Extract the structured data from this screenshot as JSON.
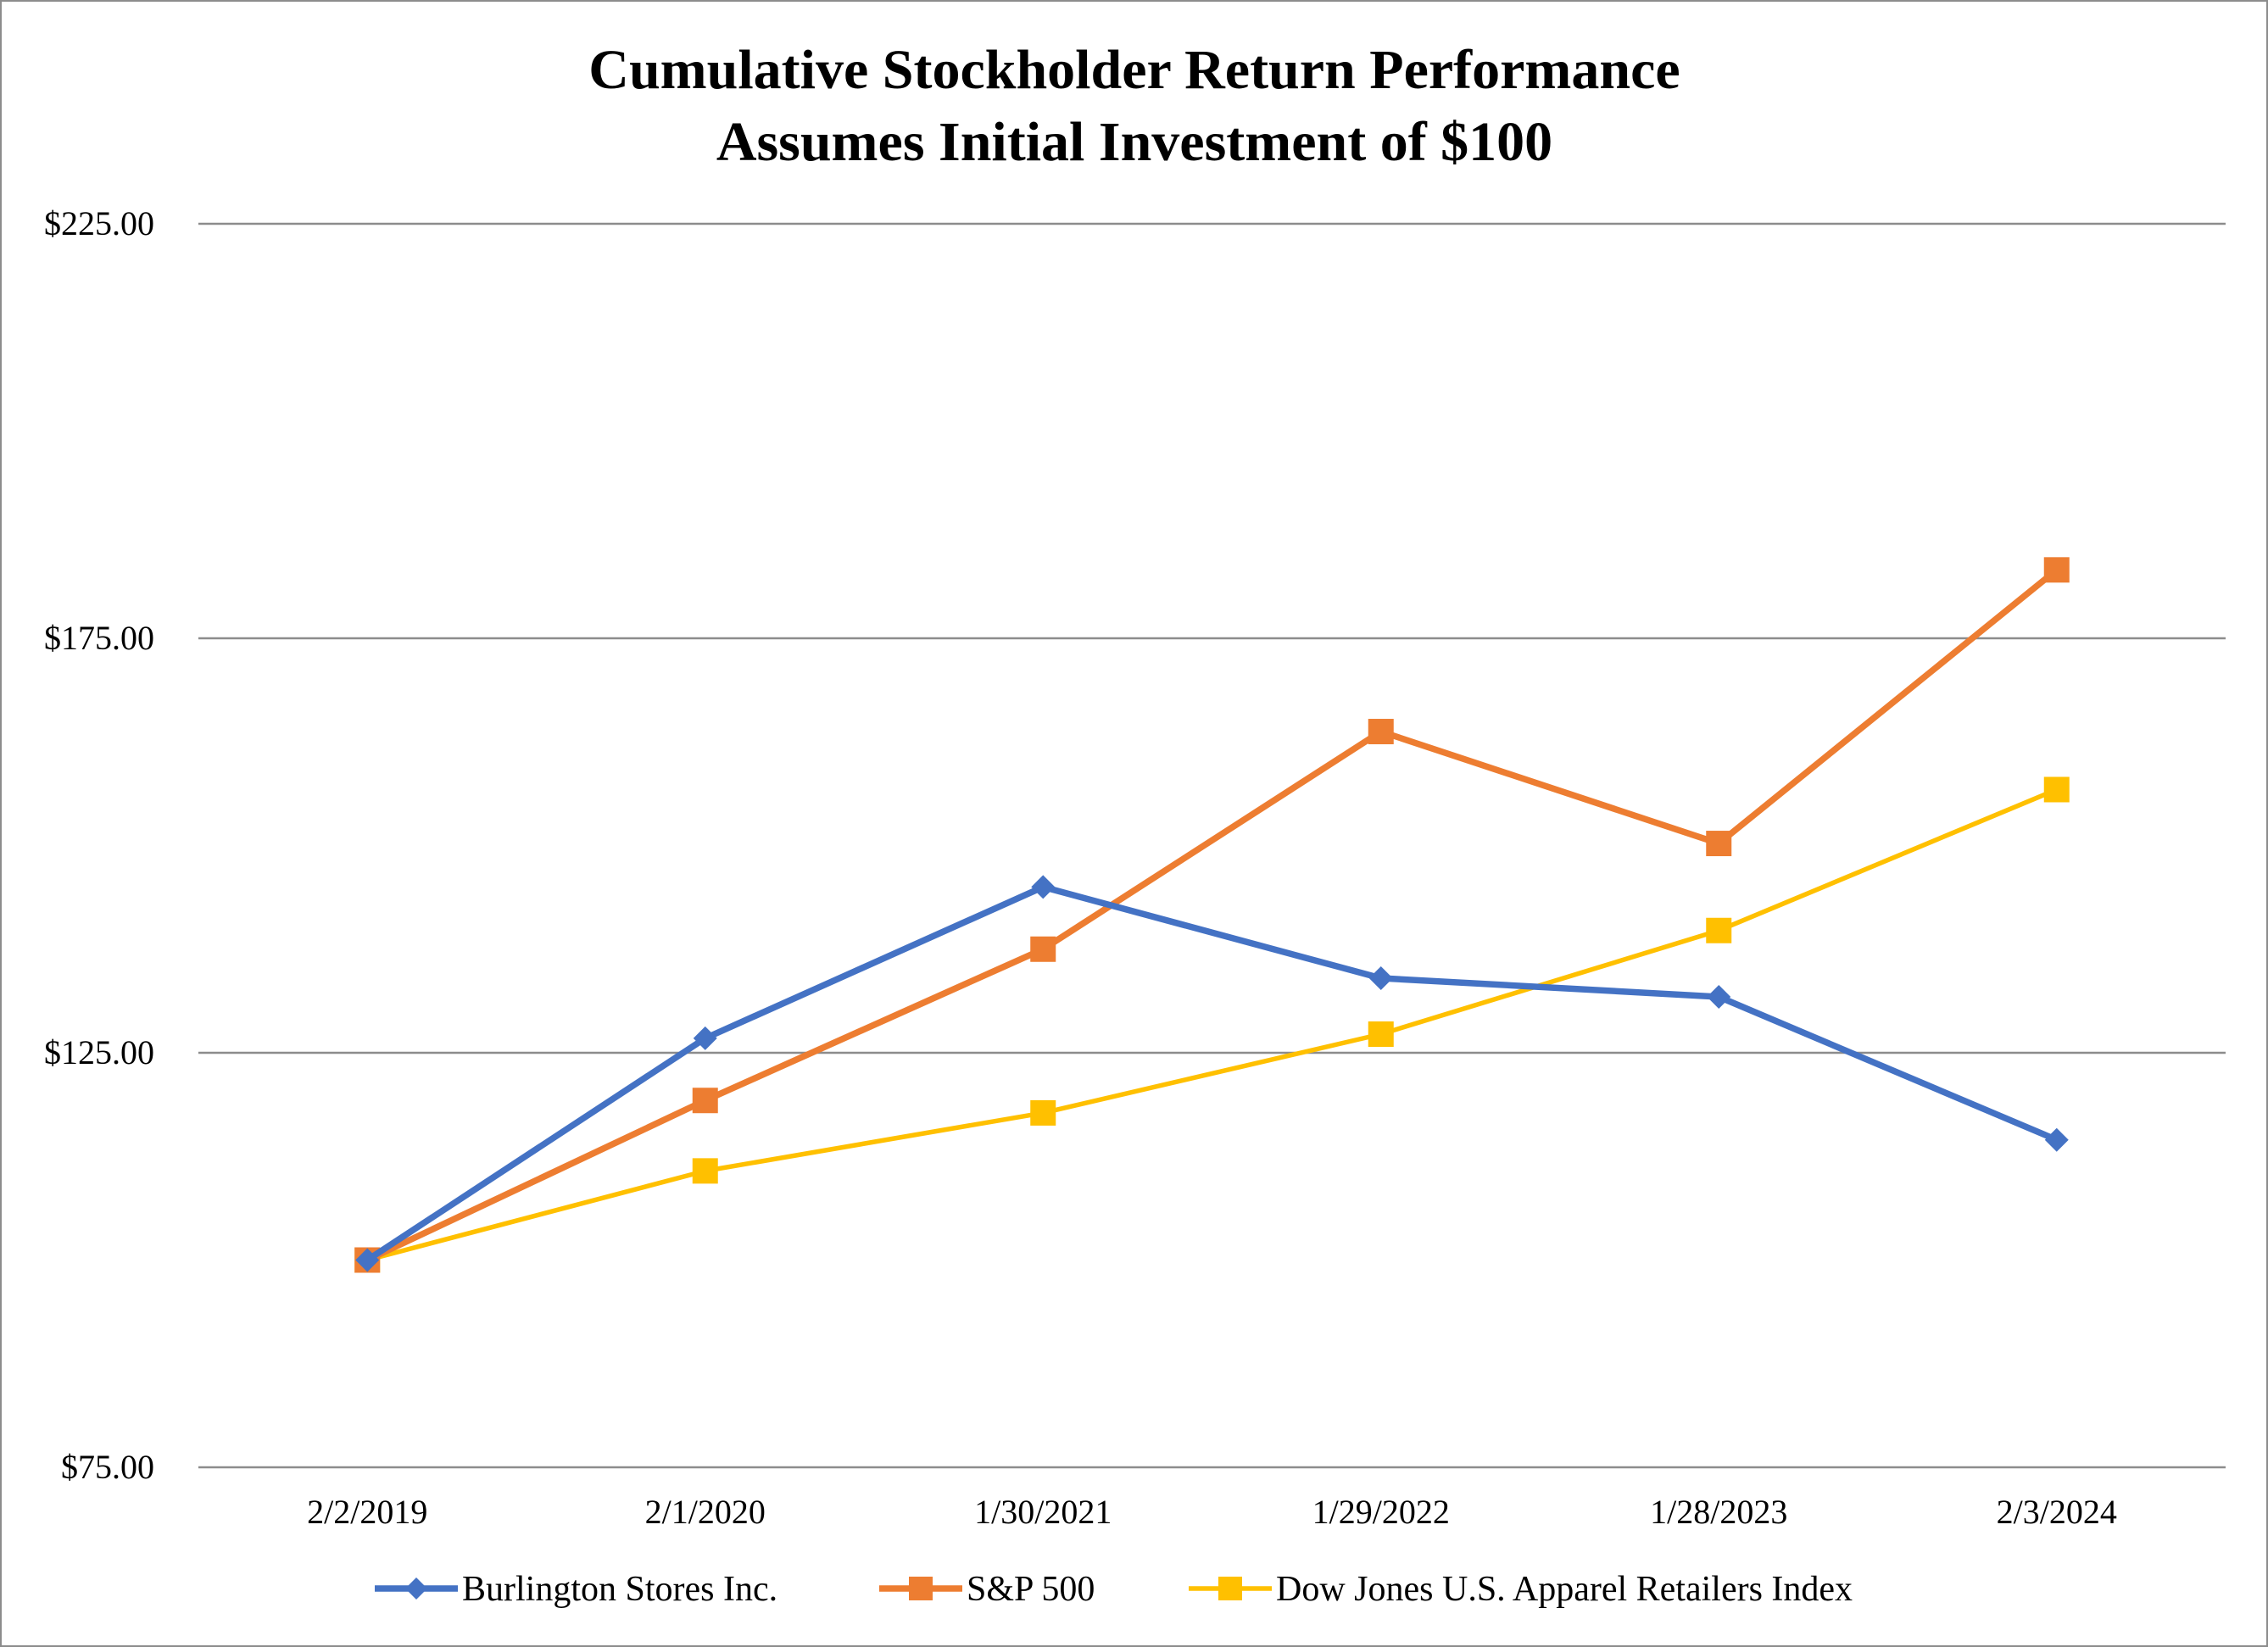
{
  "chart_data": {
    "type": "line",
    "title": "Cumulative Stockholder Return Performance",
    "subtitle": "Assumes Initial Investment of $100",
    "xlabel": "",
    "ylabel": "",
    "ylim": [
      75,
      225
    ],
    "yticks": [
      75,
      125,
      175,
      225
    ],
    "ytick_labels": [
      "$75.00",
      "$125.00",
      "$175.00",
      "$225.00"
    ],
    "categories": [
      "2/2/2019",
      "2/1/2020",
      "1/30/2021",
      "1/29/2022",
      "1/28/2023",
      "2/3/2024"
    ],
    "grid": true,
    "legend_position": "bottom",
    "series": [
      {
        "name": "Burlington Stores Inc.",
        "color": "#4472c4",
        "marker": "diamond",
        "values": [
          100.0,
          126.75,
          145.0,
          134.0,
          131.75,
          114.5
        ]
      },
      {
        "name": "S&P 500",
        "color": "#ed7d31",
        "marker": "square",
        "values": [
          100.0,
          119.25,
          137.5,
          163.75,
          150.25,
          183.25
        ]
      },
      {
        "name": "Dow Jones U.S. Apparel Retailers Index",
        "color": "#ffc000",
        "marker": "square",
        "values": [
          100.0,
          110.75,
          117.75,
          127.25,
          139.75,
          156.75
        ]
      }
    ]
  }
}
